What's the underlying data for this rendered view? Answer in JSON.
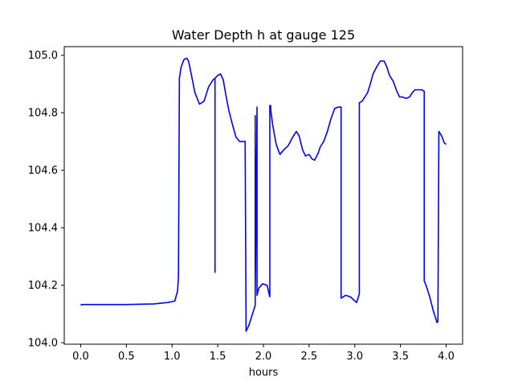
{
  "chart_data": {
    "type": "line",
    "title": "Water Depth h at gauge 125",
    "xlabel": "hours",
    "ylabel": "",
    "xlim": [
      -0.18,
      4.18
    ],
    "ylim": [
      103.995,
      105.03
    ],
    "xticks": [
      0.0,
      0.5,
      1.0,
      1.5,
      2.0,
      2.5,
      3.0,
      3.5,
      4.0
    ],
    "xtick_labels": [
      "0.0",
      "0.5",
      "1.0",
      "1.5",
      "2.0",
      "2.5",
      "3.0",
      "3.5",
      "4.0"
    ],
    "yticks": [
      104.0,
      104.2,
      104.4,
      104.6,
      104.8,
      105.0
    ],
    "ytick_labels": [
      "104.0",
      "104.2",
      "104.4",
      "104.6",
      "104.8",
      "105.0"
    ],
    "grid": false,
    "series": [
      {
        "color": "#0000ff",
        "x": [
          0.0,
          0.01,
          0.2,
          0.5,
          0.8,
          0.95,
          1.03,
          1.06,
          1.07,
          1.08,
          1.08,
          1.1,
          1.13,
          1.16,
          1.18,
          1.2,
          1.25,
          1.3,
          1.35,
          1.4,
          1.45,
          1.47,
          1.47,
          1.47,
          1.5,
          1.53,
          1.56,
          1.59,
          1.62,
          1.66,
          1.7,
          1.74,
          1.77,
          1.8,
          1.81,
          1.81,
          1.84,
          1.88,
          1.91,
          1.91,
          1.91,
          1.93,
          1.93,
          1.93,
          1.95,
          1.99,
          2.04,
          2.07,
          2.07,
          2.08,
          2.08,
          2.1,
          2.14,
          2.18,
          2.22,
          2.27,
          2.32,
          2.36,
          2.39,
          2.43,
          2.46,
          2.5,
          2.53,
          2.56,
          2.6,
          2.62,
          2.66,
          2.7,
          2.74,
          2.78,
          2.82,
          2.85,
          2.85,
          2.9,
          2.95,
          3.02,
          3.05,
          3.05,
          3.08,
          3.11,
          3.14,
          3.17,
          3.2,
          3.24,
          3.28,
          3.32,
          3.35,
          3.38,
          3.42,
          3.46,
          3.49,
          3.52,
          3.56,
          3.6,
          3.63,
          3.66,
          3.7,
          3.73,
          3.76,
          3.76,
          3.78,
          3.82,
          3.86,
          3.9,
          3.91,
          3.92,
          3.92,
          3.95,
          3.98,
          4.0
        ],
        "y": [
          104.13,
          104.133,
          104.133,
          104.133,
          104.135,
          104.14,
          104.145,
          104.18,
          104.23,
          104.9,
          104.92,
          104.96,
          104.985,
          104.99,
          104.98,
          104.95,
          104.87,
          104.83,
          104.84,
          104.89,
          104.915,
          104.92,
          104.245,
          104.92,
          104.93,
          104.935,
          104.915,
          104.86,
          104.81,
          104.76,
          104.715,
          104.7,
          104.7,
          104.7,
          104.04,
          104.04,
          104.06,
          104.1,
          104.13,
          104.79,
          104.16,
          104.82,
          104.165,
          104.165,
          104.19,
          104.205,
          104.2,
          104.16,
          104.825,
          104.825,
          104.81,
          104.76,
          104.69,
          104.655,
          104.67,
          104.685,
          104.715,
          104.735,
          104.72,
          104.67,
          104.65,
          104.655,
          104.64,
          104.635,
          104.66,
          104.68,
          104.7,
          104.735,
          104.78,
          104.815,
          104.82,
          104.82,
          104.155,
          104.165,
          104.16,
          104.14,
          104.17,
          104.835,
          104.84,
          104.855,
          104.87,
          104.9,
          104.935,
          104.96,
          104.98,
          104.98,
          104.96,
          104.93,
          104.91,
          104.875,
          104.855,
          104.855,
          104.85,
          104.855,
          104.87,
          104.88,
          104.88,
          104.88,
          104.875,
          104.215,
          104.2,
          104.16,
          104.11,
          104.07,
          104.075,
          104.735,
          104.735,
          104.72,
          104.695,
          104.69
        ]
      }
    ]
  }
}
